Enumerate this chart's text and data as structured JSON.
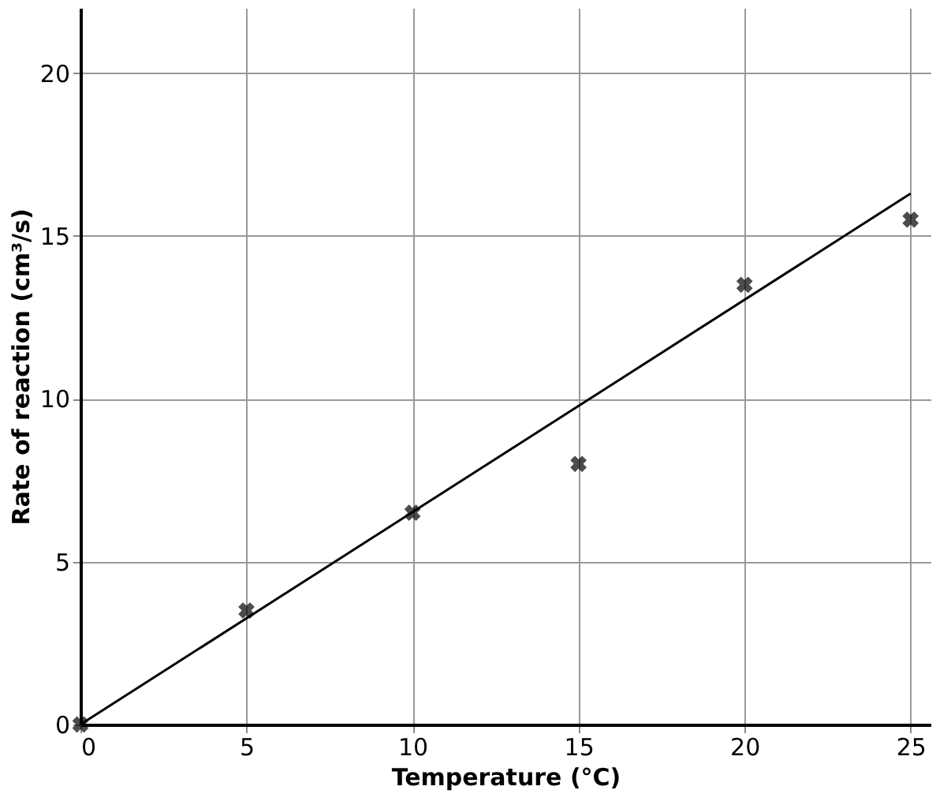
{
  "chart_data": {
    "type": "scatter",
    "xlabel": "Temperature (°C)",
    "ylabel": "Rate of reaction (cm³/s)",
    "x": [
      0,
      5,
      10,
      15,
      20,
      25
    ],
    "xlim": [
      0,
      25.6
    ],
    "ylim": [
      0,
      22
    ],
    "xticks": [
      0,
      5,
      10,
      15,
      20,
      25
    ],
    "yticks": [
      0,
      5,
      10,
      15,
      20
    ],
    "grid": true,
    "series": [
      {
        "color": "#000000",
        "marker": "cross",
        "values": [
          0,
          3.5,
          6.5,
          8,
          13.5,
          15.5
        ]
      },
      {
        "type": "line",
        "color": "#000000",
        "x": [
          0,
          25
        ],
        "values": [
          0,
          16.3
        ],
        "line_style": "solid"
      }
    ]
  }
}
